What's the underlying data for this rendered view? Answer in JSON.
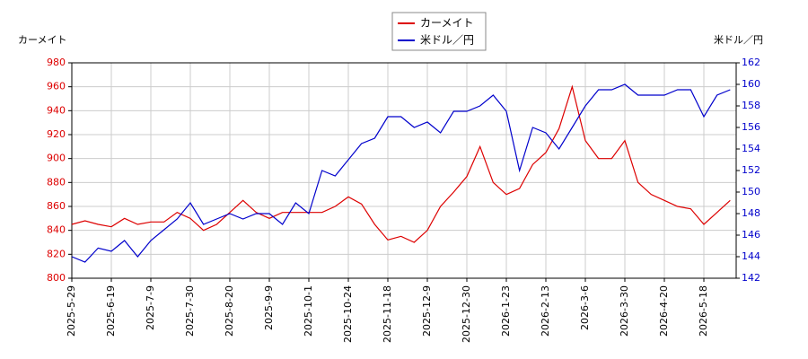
{
  "chart_data": {
    "type": "line",
    "y_label": "カーメイト",
    "y2_label": "米ドル／円",
    "categories": [
      "2025-5-29",
      null,
      null,
      "2025-6-19",
      null,
      null,
      "2025-7-9",
      null,
      null,
      "2025-7-30",
      null,
      null,
      "2025-8-20",
      null,
      null,
      "2025-9-9",
      null,
      null,
      "2025-10-1",
      null,
      null,
      "2025-10-24",
      null,
      null,
      "2025-11-18",
      null,
      null,
      "2025-12-9",
      null,
      null,
      "2025-12-30",
      null,
      null,
      "2026-1-23",
      null,
      null,
      "2026-2-13",
      null,
      null,
      "2026-3-6",
      null,
      null,
      "2026-3-30",
      null,
      null,
      "2026-4-20",
      null,
      null,
      "2026-5-18",
      null,
      null
    ],
    "series": [
      {
        "name": "カーメイト",
        "color": "#dd0000",
        "axis": "y",
        "values": [
          845,
          848,
          845,
          843,
          850,
          845,
          847,
          847,
          855,
          850,
          840,
          845,
          855,
          865,
          855,
          850,
          855,
          855,
          855,
          855,
          860,
          868,
          862,
          845,
          832,
          835,
          830,
          840,
          860,
          872,
          885,
          910,
          880,
          870,
          875,
          895,
          905,
          925,
          960,
          915,
          900,
          900,
          915,
          880,
          870,
          865,
          860,
          858,
          845,
          855,
          865
        ]
      },
      {
        "name": "米ドル／円",
        "color": "#0000cc",
        "axis": "y2",
        "values": [
          144,
          143.5,
          144.8,
          144.5,
          145.5,
          144,
          145.5,
          146.5,
          147.5,
          149,
          147,
          147.5,
          148,
          147.5,
          148,
          148,
          147,
          149,
          148,
          152,
          151.5,
          153,
          154.5,
          155,
          157,
          157,
          156,
          156.5,
          155.5,
          157.5,
          157.5,
          158,
          159,
          157.5,
          152,
          156,
          155.5,
          154,
          156,
          158,
          159.5,
          159.5,
          160,
          159,
          159,
          159,
          159.5,
          159.5,
          157,
          159,
          159.5
        ]
      }
    ],
    "ylim": [
      800,
      980
    ],
    "yticks": [
      800,
      820,
      840,
      860,
      880,
      900,
      920,
      940,
      960,
      980
    ],
    "y2lim": [
      142,
      162
    ],
    "y2ticks": [
      142,
      144,
      146,
      148,
      150,
      152,
      154,
      156,
      158,
      160,
      162
    ],
    "grid": true
  }
}
